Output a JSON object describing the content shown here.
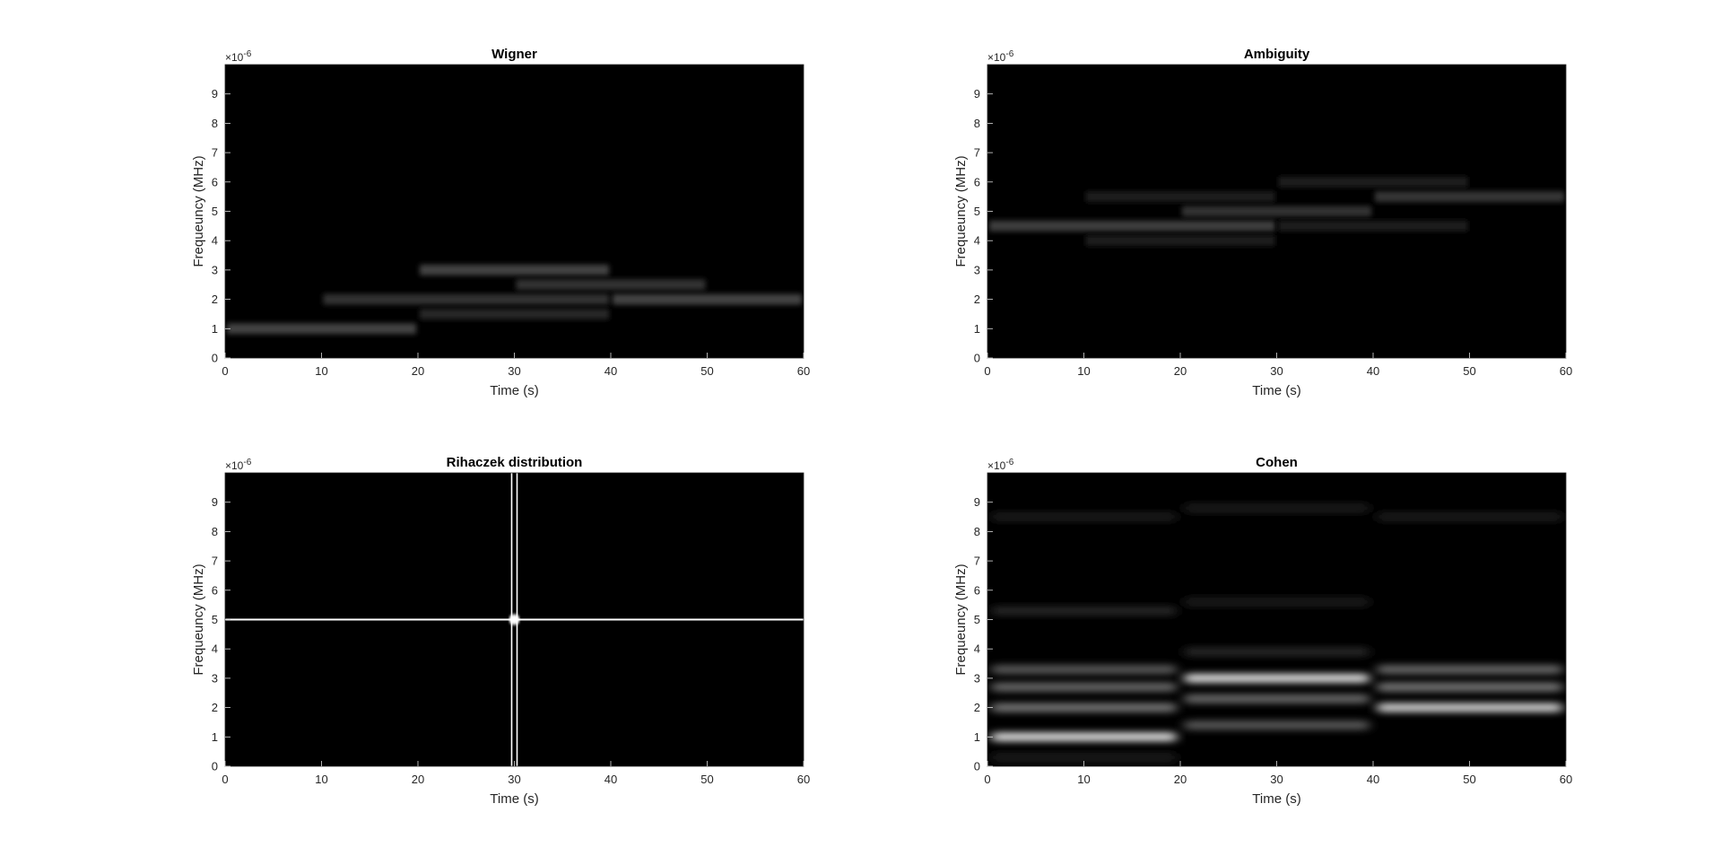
{
  "chart_data": [
    {
      "type": "heatmap",
      "title": "Wigner",
      "xlabel": "Time (s)",
      "ylabel": "Frequeuncy (MHz)",
      "y_multiplier": "×10",
      "y_exponent": "-6",
      "xlim": [
        0,
        60
      ],
      "ylim": [
        0,
        10
      ],
      "xticks": [
        "0",
        "10",
        "20",
        "30",
        "40",
        "50",
        "60"
      ],
      "yticks": [
        "0",
        "1",
        "2",
        "3",
        "4",
        "5",
        "6",
        "7",
        "8",
        "9"
      ],
      "colormap": "gray",
      "ridges": [
        {
          "t": [
            0,
            20
          ],
          "f": 1.0,
          "intensity": 0.75
        },
        {
          "t": [
            10,
            40
          ],
          "f": 2.0,
          "intensity": 0.55
        },
        {
          "t": [
            20,
            40
          ],
          "f": 3.0,
          "intensity": 0.75
        },
        {
          "t": [
            20,
            40
          ],
          "f": 1.5,
          "intensity": 0.45
        },
        {
          "t": [
            30,
            50
          ],
          "f": 2.5,
          "intensity": 0.55
        },
        {
          "t": [
            40,
            60
          ],
          "f": 2.0,
          "intensity": 0.75
        }
      ]
    },
    {
      "type": "heatmap",
      "title": "Ambiguity",
      "xlabel": "Time (s)",
      "ylabel": "Frequeuncy (MHz)",
      "y_multiplier": "×10",
      "y_exponent": "-6",
      "xlim": [
        0,
        60
      ],
      "ylim": [
        0,
        10
      ],
      "xticks": [
        "0",
        "10",
        "20",
        "30",
        "40",
        "50",
        "60"
      ],
      "yticks": [
        "0",
        "1",
        "2",
        "3",
        "4",
        "5",
        "6",
        "7",
        "8",
        "9"
      ],
      "colormap": "gray",
      "ridges": [
        {
          "t": [
            0,
            30
          ],
          "f": 4.5,
          "intensity": 0.7
        },
        {
          "t": [
            10,
            30
          ],
          "f": 5.5,
          "intensity": 0.35
        },
        {
          "t": [
            10,
            30
          ],
          "f": 4.0,
          "intensity": 0.35
        },
        {
          "t": [
            20,
            40
          ],
          "f": 5.0,
          "intensity": 0.55
        },
        {
          "t": [
            30,
            50
          ],
          "f": 6.0,
          "intensity": 0.35
        },
        {
          "t": [
            30,
            50
          ],
          "f": 4.5,
          "intensity": 0.35
        },
        {
          "t": [
            40,
            60
          ],
          "f": 5.5,
          "intensity": 0.6
        }
      ]
    },
    {
      "type": "heatmap",
      "title": "Rihaczek distribution",
      "xlabel": "Time (s)",
      "ylabel": "Frequeuncy (MHz)",
      "y_multiplier": "×10",
      "y_exponent": "-6",
      "xlim": [
        0,
        60
      ],
      "ylim": [
        0,
        10
      ],
      "xticks": [
        "0",
        "10",
        "20",
        "30",
        "40",
        "50",
        "60"
      ],
      "yticks": [
        "0",
        "1",
        "2",
        "3",
        "4",
        "5",
        "6",
        "7",
        "8",
        "9"
      ],
      "colormap": "gray",
      "cross": {
        "t": 30,
        "f": 5.0
      }
    },
    {
      "type": "heatmap",
      "title": "Cohen",
      "xlabel": "Time (s)",
      "ylabel": "Frequeuncy (MHz)",
      "y_multiplier": "×10",
      "y_exponent": "-6",
      "xlim": [
        0,
        60
      ],
      "ylim": [
        0,
        10
      ],
      "xticks": [
        "0",
        "10",
        "20",
        "30",
        "40",
        "50",
        "60"
      ],
      "yticks": [
        "0",
        "1",
        "2",
        "3",
        "4",
        "5",
        "6",
        "7",
        "8",
        "9"
      ],
      "colormap": "gray",
      "ridges": [
        {
          "t": [
            0,
            20
          ],
          "f": 1.0,
          "intensity": 0.85
        },
        {
          "t": [
            0,
            20
          ],
          "f": 2.0,
          "intensity": 0.45
        },
        {
          "t": [
            0,
            20
          ],
          "f": 2.7,
          "intensity": 0.4
        },
        {
          "t": [
            0,
            20
          ],
          "f": 3.3,
          "intensity": 0.35
        },
        {
          "t": [
            20,
            40
          ],
          "f": 3.0,
          "intensity": 0.85
        },
        {
          "t": [
            20,
            40
          ],
          "f": 2.3,
          "intensity": 0.4
        },
        {
          "t": [
            20,
            40
          ],
          "f": 1.4,
          "intensity": 0.35
        },
        {
          "t": [
            40,
            60
          ],
          "f": 2.0,
          "intensity": 0.8
        },
        {
          "t": [
            40,
            60
          ],
          "f": 2.7,
          "intensity": 0.45
        },
        {
          "t": [
            40,
            60
          ],
          "f": 3.3,
          "intensity": 0.4
        },
        {
          "t": [
            0,
            20
          ],
          "f": 5.3,
          "intensity": 0.15
        },
        {
          "t": [
            20,
            40
          ],
          "f": 8.8,
          "intensity": 0.12
        },
        {
          "t": [
            0,
            20
          ],
          "f": 8.5,
          "intensity": 0.12
        },
        {
          "t": [
            40,
            60
          ],
          "f": 8.5,
          "intensity": 0.12
        },
        {
          "t": [
            20,
            40
          ],
          "f": 5.6,
          "intensity": 0.12
        },
        {
          "t": [
            20,
            40
          ],
          "f": 3.9,
          "intensity": 0.15
        },
        {
          "t": [
            0,
            20
          ],
          "f": 0.3,
          "intensity": 0.12
        }
      ]
    }
  ]
}
